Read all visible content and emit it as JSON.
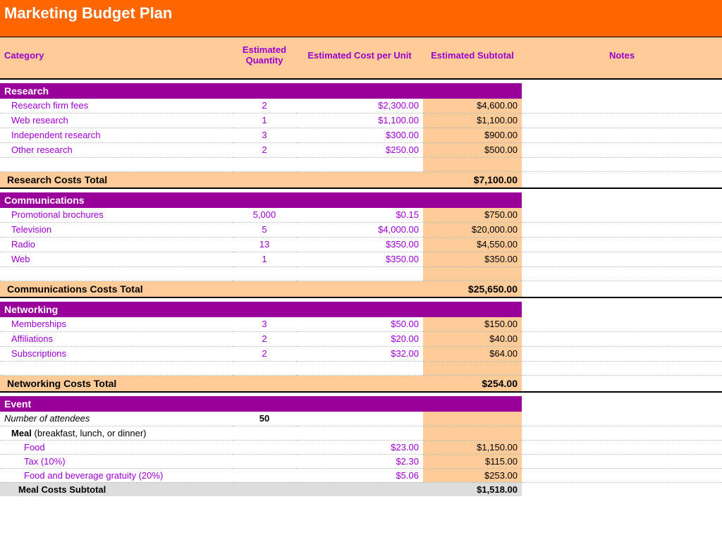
{
  "colors": {
    "title_bg": "#ff6600",
    "header_bg": "#ffcc99",
    "header_text": "#9900cc",
    "section_bg": "#990099",
    "item_text": "#9900cc",
    "subtotal_bg": "#ffcc99",
    "meal_sub_bg": "#dddddd"
  },
  "title": "Marketing Budget Plan",
  "headers": {
    "category": "Category",
    "qty": "Estimated Quantity",
    "cost": "Estimated Cost per Unit",
    "subtotal": "Estimated Subtotal",
    "notes": "Notes"
  },
  "sections": {
    "research": {
      "name": "Research",
      "items": [
        {
          "cat": "Research firm fees",
          "qty": "2",
          "cost": "$2,300.00",
          "sub": "$4,600.00"
        },
        {
          "cat": "Web research",
          "qty": "1",
          "cost": "$1,100.00",
          "sub": "$1,100.00"
        },
        {
          "cat": "Independent research",
          "qty": "3",
          "cost": "$300.00",
          "sub": "$900.00"
        },
        {
          "cat": "Other research",
          "qty": "2",
          "cost": "$250.00",
          "sub": "$500.00"
        }
      ],
      "total_label": "Research Costs Total",
      "total_value": "$7,100.00"
    },
    "communications": {
      "name": "Communications",
      "items": [
        {
          "cat": "Promotional brochures",
          "qty": "5,000",
          "cost": "$0.15",
          "sub": "$750.00"
        },
        {
          "cat": "Television",
          "qty": "5",
          "cost": "$4,000.00",
          "sub": "$20,000.00"
        },
        {
          "cat": "Radio",
          "qty": "13",
          "cost": "$350.00",
          "sub": "$4,550.00"
        },
        {
          "cat": "Web",
          "qty": "1",
          "cost": "$350.00",
          "sub": "$350.00"
        }
      ],
      "total_label": "Communications Costs Total",
      "total_value": "$25,650.00"
    },
    "networking": {
      "name": "Networking",
      "items": [
        {
          "cat": "Memberships",
          "qty": "3",
          "cost": "$50.00",
          "sub": "$150.00"
        },
        {
          "cat": "Affiliations",
          "qty": "2",
          "cost": "$20.00",
          "sub": "$40.00"
        },
        {
          "cat": "Subscriptions",
          "qty": "2",
          "cost": "$32.00",
          "sub": "$64.00"
        }
      ],
      "total_label": "Networking Costs Total",
      "total_value": "$254.00"
    },
    "event": {
      "name": "Event",
      "attendees_label": "Number of attendees",
      "attendees_value": "50",
      "meal_label_bold": "Meal",
      "meal_label_rest": " (breakfast, lunch, or dinner)",
      "items": [
        {
          "cat": "Food",
          "cost": "$23.00",
          "sub": "$1,150.00"
        },
        {
          "cat": "Tax (10%)",
          "cost": "$2.30",
          "sub": "$115.00"
        },
        {
          "cat": "Food and beverage gratuity (20%)",
          "cost": "$5.06",
          "sub": "$253.00"
        }
      ],
      "meal_sub_label": "Meal Costs Subtotal",
      "meal_sub_value": "$1,518.00"
    }
  }
}
